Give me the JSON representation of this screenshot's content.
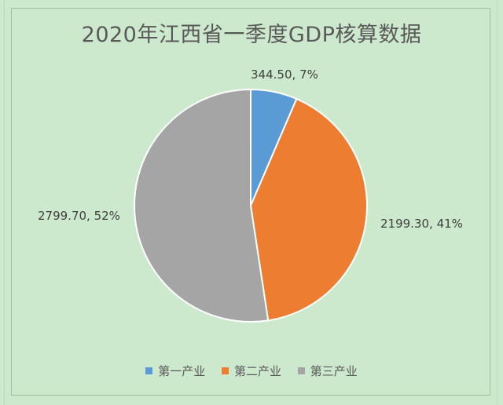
{
  "chart_data": {
    "type": "pie",
    "title": "2020年江西省一季度GDP核算数据",
    "categories": [
      "第一产业",
      "第二产业",
      "第三产业"
    ],
    "values": [
      344.5,
      2199.3,
      2799.7
    ],
    "percent_labels": [
      "7%",
      "41%",
      "52%"
    ],
    "value_labels": [
      "344.50",
      "2199.30",
      "2799.70"
    ],
    "colors": [
      "#5b9bd5",
      "#ed7d31",
      "#a5a5a5"
    ],
    "legend_position": "bottom",
    "start_angle_deg": 0,
    "direction": "clockwise"
  }
}
